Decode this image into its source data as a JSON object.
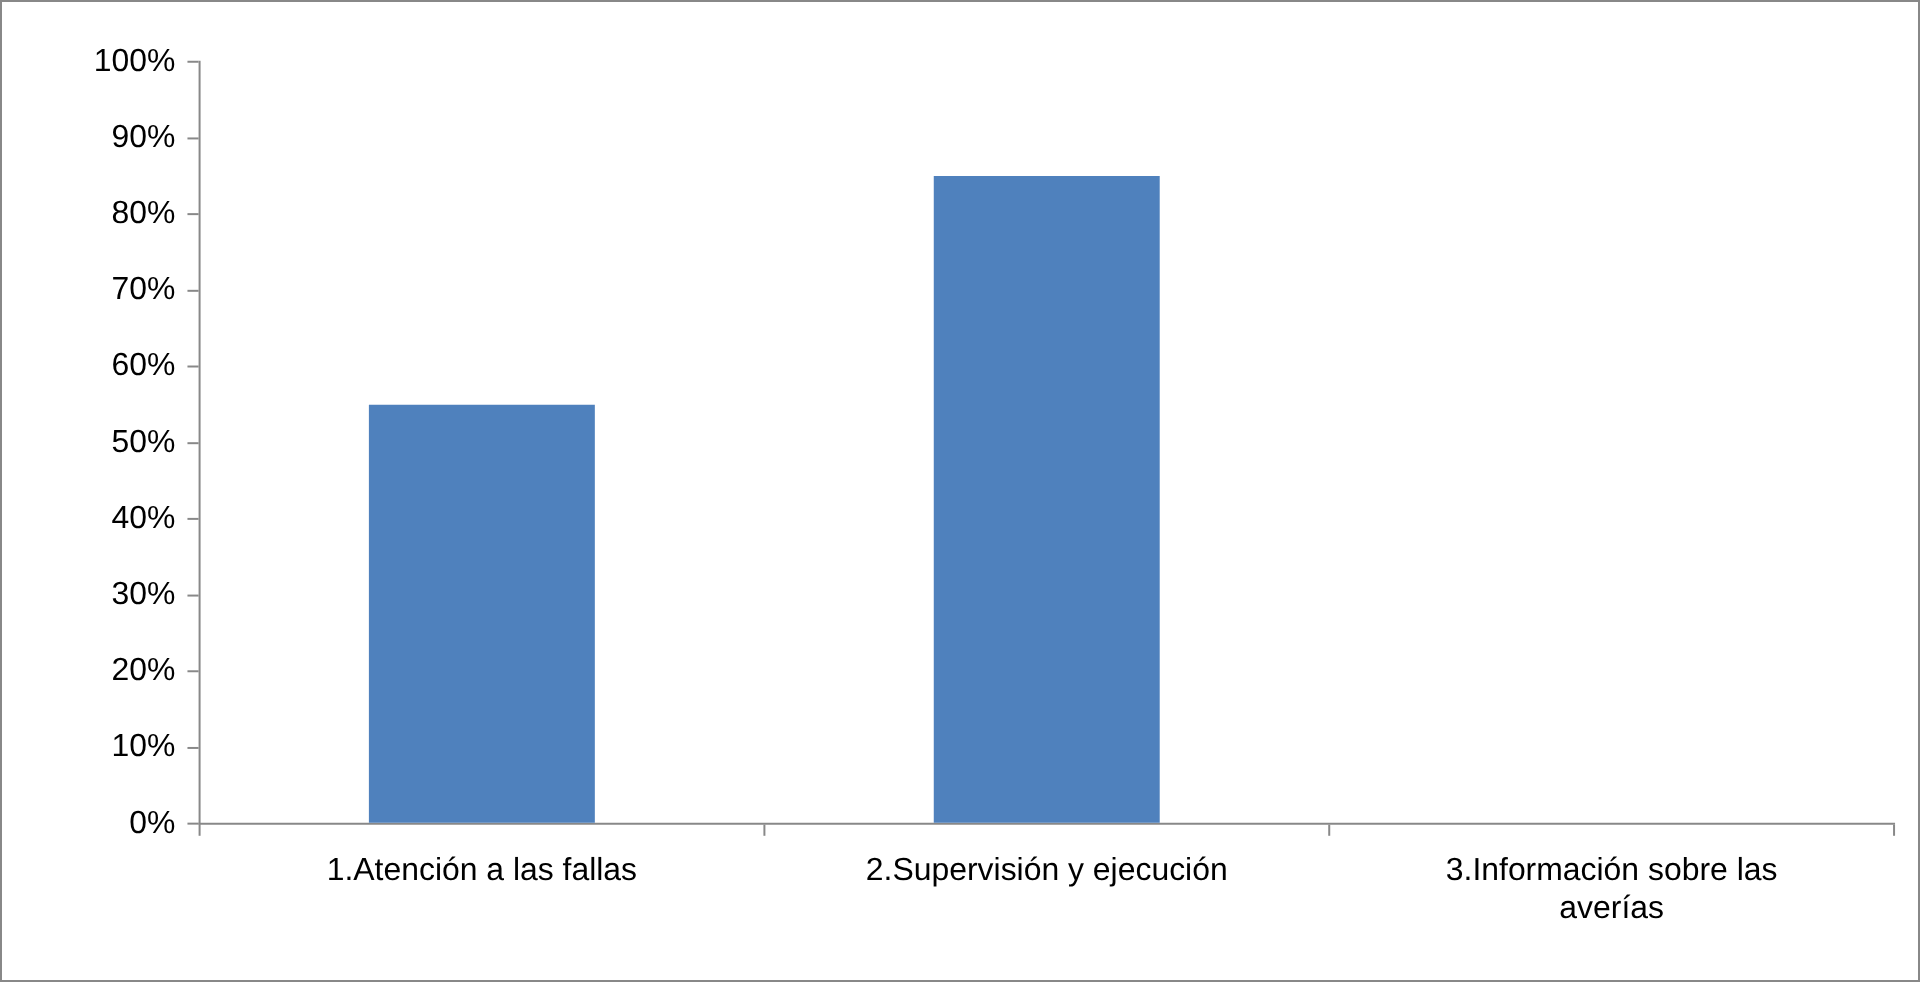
{
  "chart_data": {
    "type": "bar",
    "categories": [
      "1.Atención a las fallas",
      "2.Supervisión y ejecución",
      "3.Información sobre las averías"
    ],
    "values": [
      55,
      85,
      0
    ],
    "color": "#4f81bd",
    "ylim": [
      0,
      100
    ],
    "yticks": [
      {
        "value": 0,
        "label": "0%"
      },
      {
        "value": 10,
        "label": "10%"
      },
      {
        "value": 20,
        "label": "20%"
      },
      {
        "value": 30,
        "label": "30%"
      },
      {
        "value": 40,
        "label": "40%"
      },
      {
        "value": 50,
        "label": "50%"
      },
      {
        "value": 60,
        "label": "60%"
      },
      {
        "value": 70,
        "label": "70%"
      },
      {
        "value": 80,
        "label": "80%"
      },
      {
        "value": 90,
        "label": "90%"
      },
      {
        "value": 100,
        "label": "100%"
      }
    ],
    "grid": false,
    "legend": false
  }
}
